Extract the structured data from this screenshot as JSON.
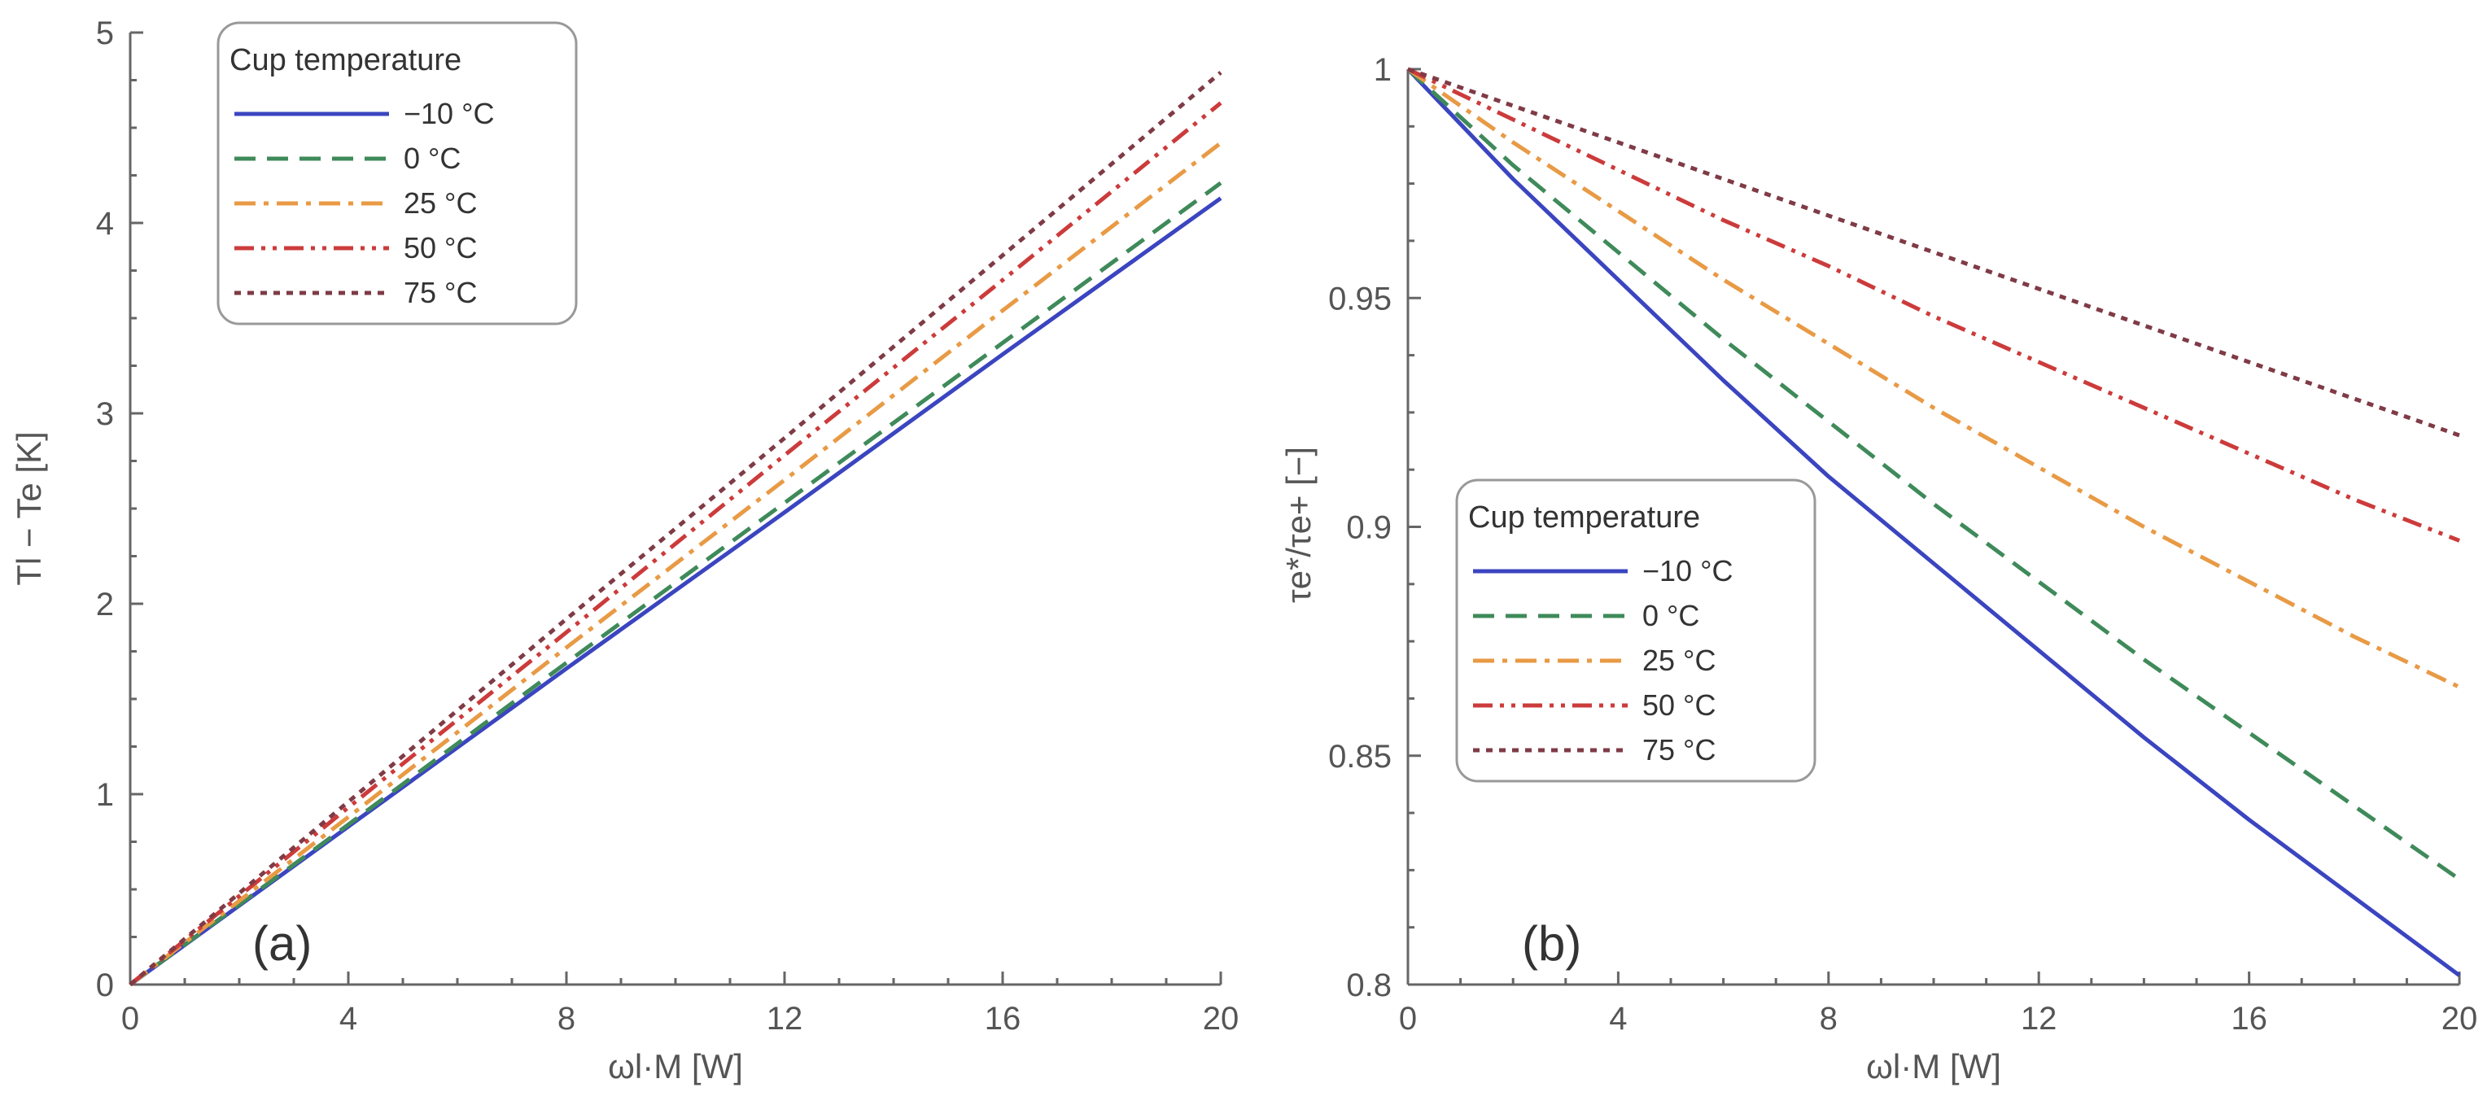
{
  "chart_data": [
    {
      "type": "line",
      "panel_label": "(a)",
      "xlabel": "ωl·M [W]",
      "ylabel": "Tl − Te [K]",
      "xlim": [
        0,
        20
      ],
      "ylim": [
        0,
        5
      ],
      "xticks": [
        "0",
        "4",
        "8",
        "12",
        "16",
        "20"
      ],
      "yticks": [
        "0",
        "1",
        "2",
        "3",
        "4",
        "5"
      ],
      "legend_title": "Cup temperature",
      "legend_position": "top-left",
      "series": [
        {
          "name": "−10 °C",
          "x": [
            0,
            4,
            8,
            12,
            16,
            20
          ],
          "values": [
            0,
            0.83,
            1.66,
            2.48,
            3.31,
            4.13
          ]
        },
        {
          "name": "0 °C",
          "x": [
            0,
            4,
            8,
            12,
            16,
            20
          ],
          "values": [
            0,
            0.84,
            1.69,
            2.53,
            3.37,
            4.21
          ]
        },
        {
          "name": "25 °C",
          "x": [
            0,
            4,
            8,
            12,
            16,
            20
          ],
          "values": [
            0,
            0.88,
            1.77,
            2.65,
            3.54,
            4.42
          ]
        },
        {
          "name": "50 °C",
          "x": [
            0,
            4,
            8,
            12,
            16,
            20
          ],
          "values": [
            0,
            0.93,
            1.85,
            2.78,
            3.7,
            4.63
          ]
        },
        {
          "name": "75 °C",
          "x": [
            0,
            4,
            8,
            12,
            16,
            20
          ],
          "values": [
            0,
            0.96,
            1.92,
            2.87,
            3.83,
            4.79
          ]
        }
      ]
    },
    {
      "type": "line",
      "panel_label": "(b)",
      "xlabel": "ωl·M [W]",
      "ylabel": "τe*/τe+ [−]",
      "xlim": [
        0,
        20
      ],
      "ylim": [
        0.8,
        1
      ],
      "xticks": [
        "0",
        "4",
        "8",
        "12",
        "16",
        "20"
      ],
      "yticks": [
        "0.8",
        "0.85",
        "0.9",
        "0.95",
        "1"
      ],
      "legend_title": "Cup temperature",
      "legend_position": "center-left",
      "series": [
        {
          "name": "−10 °C",
          "x": [
            0,
            2,
            4,
            6,
            8,
            10,
            12,
            14,
            16,
            18,
            20
          ],
          "values": [
            1,
            0.976,
            0.954,
            0.932,
            0.911,
            0.892,
            0.873,
            0.854,
            0.836,
            0.819,
            0.802
          ]
        },
        {
          "name": "0 °C",
          "x": [
            0,
            2,
            4,
            6,
            8,
            10,
            12,
            14,
            16,
            18,
            20
          ],
          "values": [
            1,
            0.979,
            0.96,
            0.941,
            0.923,
            0.905,
            0.888,
            0.871,
            0.855,
            0.839,
            0.823
          ]
        },
        {
          "name": "25 °C",
          "x": [
            0,
            2,
            4,
            6,
            8,
            10,
            12,
            14,
            16,
            18,
            20
          ],
          "values": [
            1,
            0.984,
            0.969,
            0.954,
            0.94,
            0.926,
            0.913,
            0.9,
            0.888,
            0.876,
            0.865
          ]
        },
        {
          "name": "50 °C",
          "x": [
            0,
            2,
            4,
            6,
            8,
            10,
            12,
            14,
            16,
            18,
            20
          ],
          "values": [
            1,
            0.989,
            0.978,
            0.967,
            0.957,
            0.946,
            0.936,
            0.926,
            0.916,
            0.906,
            0.897
          ]
        },
        {
          "name": "75 °C",
          "x": [
            0,
            2,
            4,
            6,
            8,
            10,
            12,
            14,
            16,
            18,
            20
          ],
          "values": [
            1,
            0.992,
            0.984,
            0.976,
            0.968,
            0.96,
            0.952,
            0.944,
            0.936,
            0.928,
            0.92
          ]
        }
      ]
    }
  ],
  "series_colors": [
    "#3b45c0",
    "#3f8a5a",
    "#e89a45",
    "#cc3b3b",
    "#7f3b46"
  ]
}
